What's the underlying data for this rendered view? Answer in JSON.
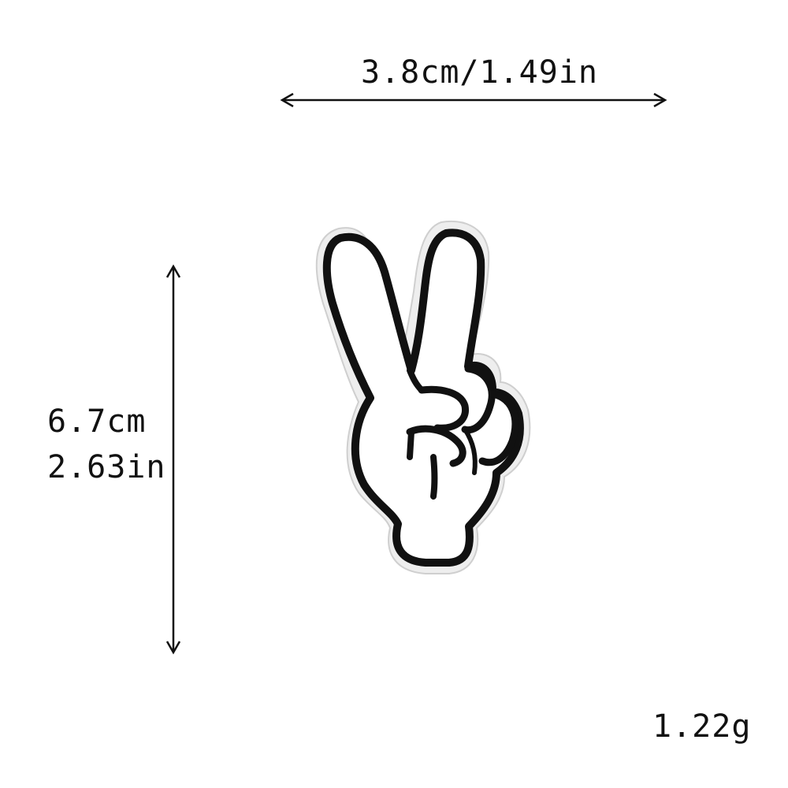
{
  "width_dimension": {
    "label": "3.8cm/1.49in"
  },
  "height_dimension": {
    "label_cm": "6.7cm",
    "label_in": "2.63in"
  },
  "weight": {
    "label": "1.22g"
  },
  "patch": {
    "icon": "peace-sign-hand-icon",
    "fill_color": "#ffffff",
    "outline_color": "#111111",
    "backing_color": "#eeeeee"
  }
}
